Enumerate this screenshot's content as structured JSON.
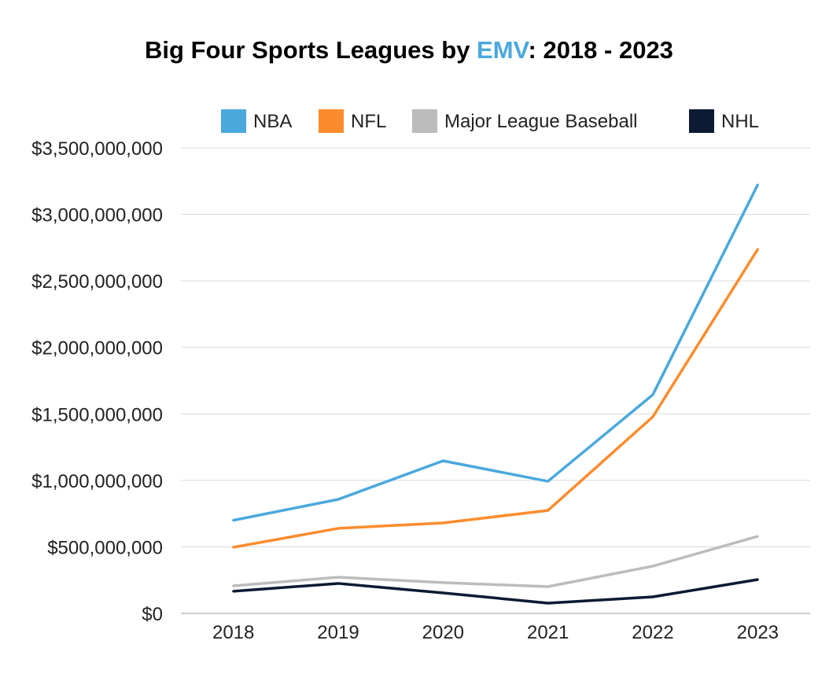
{
  "chart_data": {
    "type": "line",
    "title": "Big Four Sports Leagues by EMV: 2018 - 2023",
    "title_parts": {
      "before": "Big Four Sports Leagues by ",
      "highlight": "EMV",
      "after": ": 2018 - 2023",
      "highlight_color": "#4aa8dd"
    },
    "xlabel": "",
    "ylabel": "",
    "categories": [
      "2018",
      "2019",
      "2020",
      "2021",
      "2022",
      "2023"
    ],
    "ylim": [
      0,
      3500000000
    ],
    "yticks": [
      0,
      500000000,
      1000000000,
      1500000000,
      2000000000,
      2500000000,
      3000000000,
      3500000000
    ],
    "ytick_labels": [
      "$0",
      "$500,000,000",
      "$1,000,000,000",
      "$1,500,000,000",
      "$2,000,000,000",
      "$2,500,000,000",
      "$3,000,000,000",
      "$3,500,000,000"
    ],
    "grid": true,
    "legend_position": "top",
    "series": [
      {
        "name": "NBA",
        "color": "#4aa8dd",
        "values": [
          700000000,
          857000000,
          1147000000,
          993000000,
          1644000000,
          3222000000
        ]
      },
      {
        "name": "NFL",
        "color": "#fb8c2e",
        "values": [
          497000000,
          639000000,
          680000000,
          774000000,
          1478000000,
          2737000000
        ]
      },
      {
        "name": "Major League Baseball",
        "color": "#bcbcbc",
        "values": [
          207000000,
          272000000,
          231000000,
          201000000,
          355000000,
          579000000
        ]
      },
      {
        "name": "NHL",
        "color": "#0c1a33",
        "values": [
          166000000,
          225000000,
          154000000,
          77000000,
          124000000,
          254000000
        ]
      }
    ]
  }
}
